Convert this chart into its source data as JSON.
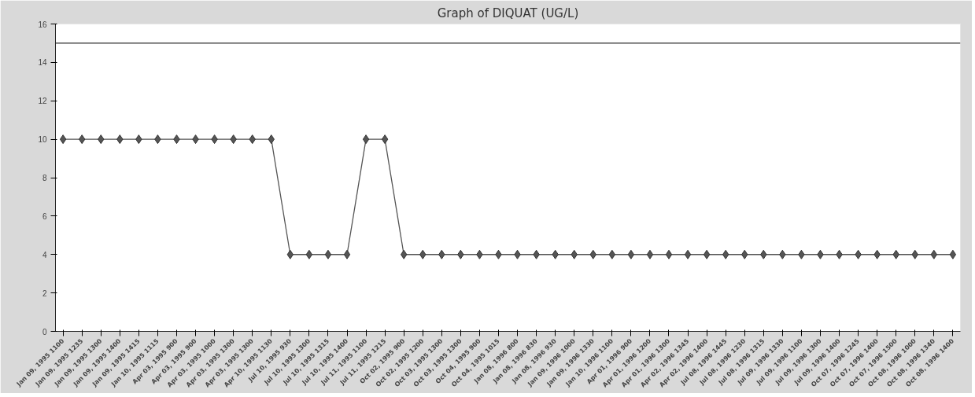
{
  "chart_data": {
    "type": "line",
    "title": "Graph of DIQUAT (UG/L)",
    "categories": [
      "Jan 09, 1995 1100",
      "Jan 09, 1995 1235",
      "Jan 09, 1995 1300",
      "Jan 09, 1995 1400",
      "Jan 09, 1995 1415",
      "Jan 10, 1995 1115",
      "Apr 03, 1995 900",
      "Apr 03, 1995 900",
      "Apr 03, 1995 1000",
      "Apr 03, 1995 1300",
      "Apr 03, 1995 1300",
      "Apr 10, 1995 1130",
      "Jul 10, 1995 930",
      "Jul 10, 1995 1300",
      "Jul 10, 1995 1315",
      "Jul 10, 1995 1400",
      "Jul 11, 1995 1100",
      "Jul 11, 1995 1215",
      "Oct 02, 1995 900",
      "Oct 02, 1995 1200",
      "Oct 03, 1995 1300",
      "Oct 03, 1995 1300",
      "Oct 04, 1995 900",
      "Oct 04, 1995 1015",
      "Jan 08, 1996 800",
      "Jan 08, 1996 830",
      "Jan 08, 1996 930",
      "Jan 09, 1996 1000",
      "Jan 09, 1996 1330",
      "Jan 10, 1996 1100",
      "Apr 01, 1996 900",
      "Apr 01, 1996 1200",
      "Apr 01, 1996 1300",
      "Apr 02, 1996 1345",
      "Apr 02, 1996 1400",
      "Jul 08, 1996 1445",
      "Jul 08, 1996 1230",
      "Jul 08, 1996 1315",
      "Jul 09, 1996 1330",
      "Jul 09, 1996 1100",
      "Jul 09, 1996 1300",
      "Jul 09, 1996 1400",
      "Oct 07, 1996 1245",
      "Oct 07, 1996 1400",
      "Oct 07, 1996 1500",
      "Oct 08, 1996 1000",
      "Oct 08, 1996 1340",
      "Oct 08, 1996 1400"
    ],
    "series": [
      {
        "color": "#555555",
        "values": [
          10,
          10,
          10,
          10,
          10,
          10,
          10,
          10,
          10,
          10,
          10,
          10,
          4,
          4,
          4,
          4,
          10,
          10,
          4,
          4,
          4,
          4,
          4,
          4,
          4,
          4,
          4,
          4,
          4,
          4,
          4,
          4,
          4,
          4,
          4,
          4,
          4,
          4,
          4,
          4,
          4,
          4,
          4,
          4,
          4,
          4,
          4,
          4
        ]
      }
    ],
    "ylim": [
      0,
      16
    ],
    "yticks": [
      0,
      2,
      4,
      6,
      8,
      10,
      12,
      14,
      16
    ],
    "ref_lines": [
      {
        "axis": "y",
        "value": 15,
        "color": "#333333",
        "line_style": "solid"
      }
    ],
    "marker": "diamond",
    "line_style": "solid",
    "grid": false
  }
}
